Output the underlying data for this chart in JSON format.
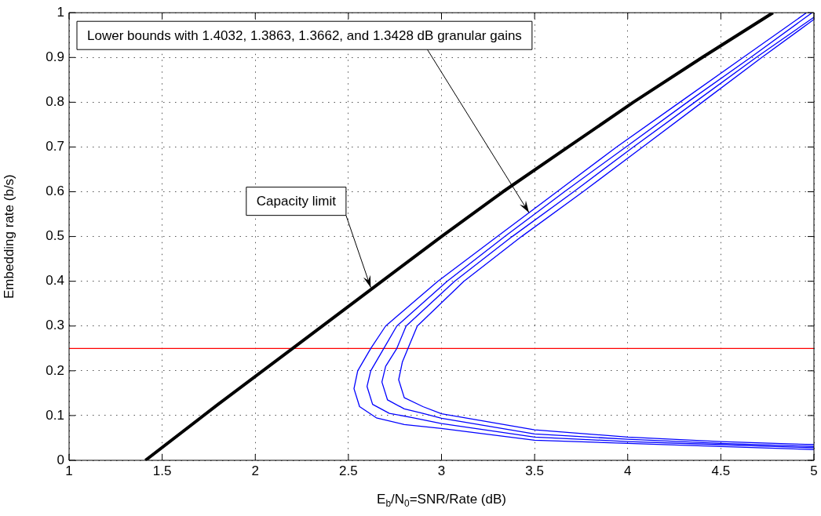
{
  "chart_data": {
    "type": "line",
    "xlabel": "E$_{b}$/N$_{0}$=SNR/Rate (dB)",
    "ylabel": "Embedding rate (b/s)",
    "xlim": [
      1,
      5
    ],
    "xticks": [
      1,
      1.5,
      2,
      2.5,
      3,
      3.5,
      4,
      4.5,
      5
    ],
    "ylim": [
      0,
      1
    ],
    "yticks": [
      0,
      0.1,
      0.2,
      0.3,
      0.4,
      0.5,
      0.6,
      0.7,
      0.8,
      0.9,
      1
    ],
    "grid": true,
    "marker": "none",
    "line_style": "solid",
    "series": [
      {
        "color": "#000000",
        "x": [
          1.41,
          1.8,
          2.2,
          2.68,
          3.0,
          3.33,
          3.68,
          4.03,
          4.4,
          4.78
        ],
        "values": [
          0,
          0.125,
          0.25,
          0.4,
          0.5,
          0.6,
          0.7,
          0.8,
          0.9,
          1
        ]
      },
      {
        "color": "#0000ff",
        "x": [
          5,
          4.5,
          4,
          3.5,
          3,
          2.8,
          2.65,
          2.56,
          2.53,
          2.55,
          2.62,
          2.7,
          2.98,
          3.3,
          3.62,
          3.94,
          4.28,
          4.62,
          4.96
        ],
        "values": [
          0.024,
          0.031,
          0.038,
          0.045,
          0.071,
          0.08,
          0.095,
          0.12,
          0.16,
          0.2,
          0.25,
          0.3,
          0.4,
          0.5,
          0.6,
          0.7,
          0.8,
          0.9,
          1
        ]
      },
      {
        "color": "#0000ff",
        "x": [
          5,
          4.5,
          4,
          3.5,
          3,
          2.85,
          2.72,
          2.63,
          2.6,
          2.62,
          2.69,
          2.76,
          3.03,
          3.34,
          3.66,
          3.99,
          4.32,
          4.66,
          4.99
        ],
        "values": [
          0.028,
          0.035,
          0.042,
          0.052,
          0.082,
          0.095,
          0.105,
          0.125,
          0.165,
          0.2,
          0.25,
          0.3,
          0.4,
          0.5,
          0.6,
          0.7,
          0.8,
          0.9,
          1
        ]
      },
      {
        "color": "#0000ff",
        "x": [
          5,
          4.5,
          4,
          3.5,
          3,
          2.9,
          2.8,
          2.71,
          2.68,
          2.7,
          2.76,
          2.81,
          3.07,
          3.38,
          3.71,
          4.03,
          4.36,
          4.69,
          5
        ],
        "values": [
          0.031,
          0.038,
          0.047,
          0.059,
          0.094,
          0.105,
          0.115,
          0.135,
          0.175,
          0.21,
          0.25,
          0.3,
          0.4,
          0.5,
          0.6,
          0.7,
          0.8,
          0.9,
          0.99
        ]
      },
      {
        "color": "#0000ff",
        "x": [
          5,
          4.5,
          4,
          3.5,
          3,
          2.9,
          2.8,
          2.77,
          2.79,
          2.82,
          2.87,
          3.12,
          3.43,
          3.76,
          4.08,
          4.4,
          4.72,
          5
        ],
        "values": [
          0.035,
          0.042,
          0.052,
          0.068,
          0.104,
          0.12,
          0.14,
          0.18,
          0.22,
          0.25,
          0.3,
          0.4,
          0.5,
          0.6,
          0.7,
          0.8,
          0.9,
          0.985
        ]
      }
    ],
    "ref_lines": [
      {
        "axis": "y",
        "value": 0.25,
        "color": "#ff0000"
      }
    ],
    "annotations": [
      {
        "text": "Capacity limit",
        "x": 2.62,
        "y": 0.386
      },
      {
        "text": "Lower bounds with 1.4032, 1.3863, 1.3662, and 1.3428 dB granular gains",
        "x": 3.47,
        "y": 0.553
      }
    ]
  }
}
